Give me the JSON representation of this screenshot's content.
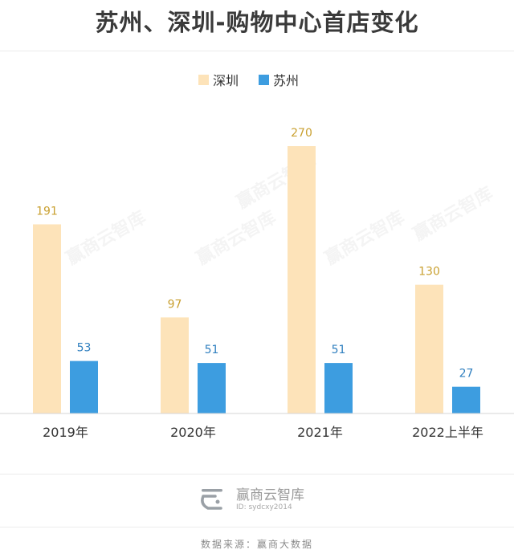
{
  "title": "苏州、深圳-购物中心首店变化",
  "chart_data": {
    "type": "bar",
    "categories": [
      "2019年",
      "2020年",
      "2021年",
      "2022上半年"
    ],
    "series": [
      {
        "name": "深圳",
        "values": [
          191,
          97,
          270,
          130
        ],
        "color": "#fde3b9",
        "label_color": "#c9a030"
      },
      {
        "name": "苏州",
        "values": [
          53,
          51,
          51,
          27
        ],
        "color": "#3d9de0",
        "label_color": "#2f7fbf"
      }
    ],
    "ylim": [
      0,
      270
    ],
    "grid": false,
    "legend": "top-center"
  },
  "watermark": "赢商云智库",
  "brand": {
    "name": "赢商云智库",
    "id": "ID: sydcxy2014"
  },
  "source": "数据来源：赢商大数据"
}
